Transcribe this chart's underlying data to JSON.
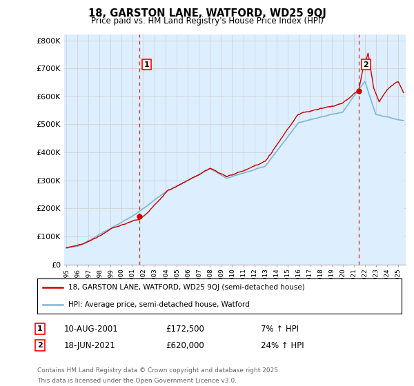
{
  "title": "18, GARSTON LANE, WATFORD, WD25 9QJ",
  "subtitle": "Price paid vs. HM Land Registry's House Price Index (HPI)",
  "ylabel_ticks": [
    "£0",
    "£100K",
    "£200K",
    "£300K",
    "£400K",
    "£500K",
    "£600K",
    "£700K",
    "£800K"
  ],
  "ytick_values": [
    0,
    100000,
    200000,
    300000,
    400000,
    500000,
    600000,
    700000,
    800000
  ],
  "ylim": [
    0,
    820000
  ],
  "xlim_start": 1994.8,
  "xlim_end": 2025.7,
  "purchase1": {
    "date_num": 2001.61,
    "price": 172500,
    "label": "1",
    "pct": "7%",
    "date_str": "10-AUG-2001"
  },
  "purchase2": {
    "date_num": 2021.46,
    "price": 620000,
    "label": "2",
    "pct": "24%",
    "date_str": "18-JUN-2021"
  },
  "legend_line1": "18, GARSTON LANE, WATFORD, WD25 9QJ (semi-detached house)",
  "legend_line2": "HPI: Average price, semi-detached house, Watford",
  "footnote1": "Contains HM Land Registry data © Crown copyright and database right 2025.",
  "footnote2": "This data is licensed under the Open Government Licence v3.0.",
  "color_red": "#cc0000",
  "color_blue": "#7eb5d6",
  "color_blue_fill": "#ddeeff",
  "color_dashed": "#cc0000",
  "background_color": "#ffffff",
  "grid_color": "#cccccc"
}
